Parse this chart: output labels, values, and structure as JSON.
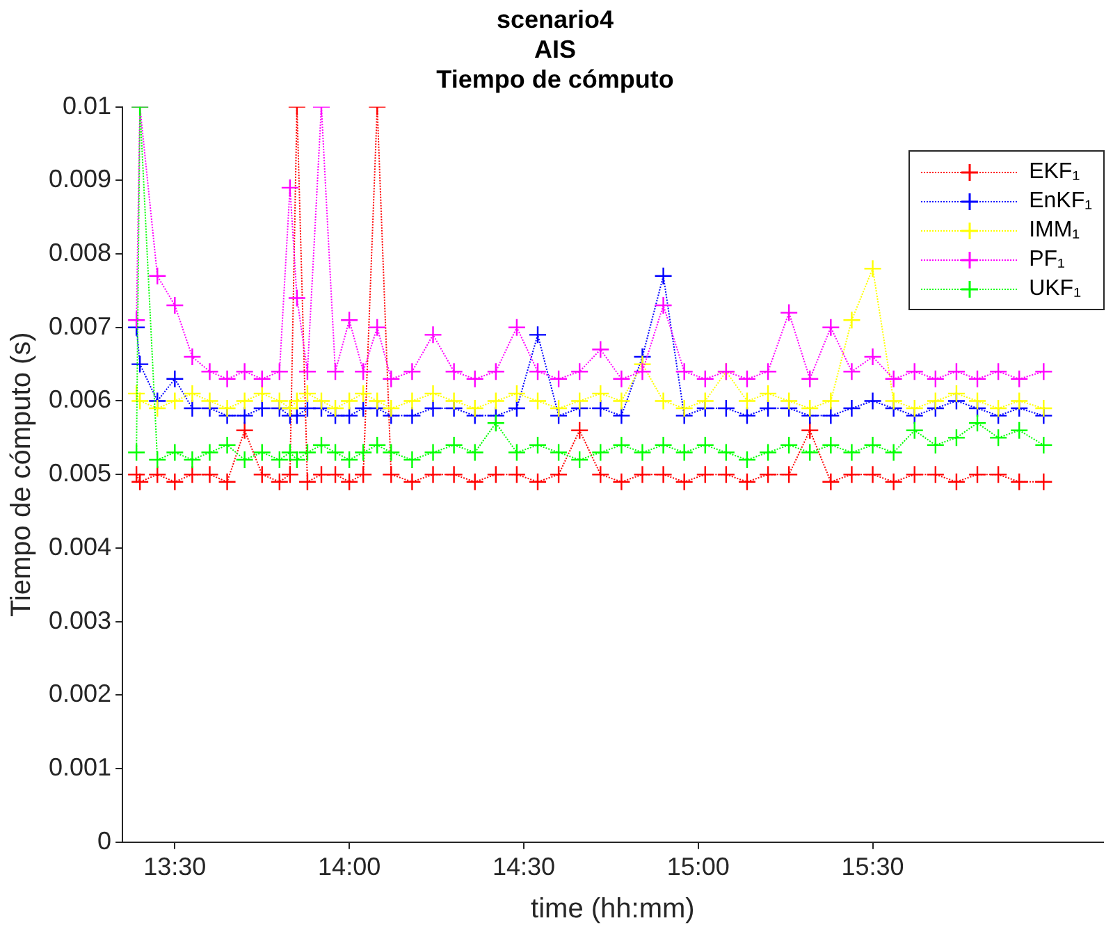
{
  "chart_data": {
    "type": "line",
    "title": "scenario4\nAIS\nTiempo de cómputo",
    "xlabel": "time (hh:mm)",
    "ylabel": "Tiempo de cómputo (s)",
    "x": [
      13.39,
      13.4,
      13.45,
      13.5,
      13.55,
      13.6,
      13.65,
      13.7,
      13.75,
      13.8,
      13.83,
      13.85,
      13.88,
      13.92,
      13.96,
      14.0,
      14.04,
      14.08,
      14.12,
      14.18,
      14.24,
      14.3,
      14.36,
      14.42,
      14.48,
      14.54,
      14.6,
      14.66,
      14.72,
      14.78,
      14.84,
      14.9,
      14.96,
      15.02,
      15.08,
      15.14,
      15.2,
      15.26,
      15.32,
      15.38,
      15.44,
      15.5,
      15.56,
      15.62,
      15.68,
      15.74,
      15.8,
      15.86,
      15.92,
      15.99
    ],
    "series": [
      {
        "name": "EKF₁",
        "color": "#ff0000",
        "values": [
          0.005,
          0.0049,
          0.005,
          0.0049,
          0.005,
          0.005,
          0.0049,
          0.0056,
          0.005,
          0.0049,
          0.005,
          0.01,
          0.0049,
          0.005,
          0.005,
          0.0049,
          0.005,
          0.01,
          0.005,
          0.0049,
          0.005,
          0.005,
          0.0049,
          0.005,
          0.005,
          0.0049,
          0.005,
          0.0056,
          0.005,
          0.0049,
          0.005,
          0.005,
          0.0049,
          0.005,
          0.005,
          0.0049,
          0.005,
          0.005,
          0.0056,
          0.0049,
          0.005,
          0.005,
          0.0049,
          0.005,
          0.005,
          0.0049,
          0.005,
          0.005,
          0.0049,
          0.0049
        ]
      },
      {
        "name": "EnKF₁",
        "color": "#0000ff",
        "values": [
          0.007,
          0.0065,
          0.006,
          0.0063,
          0.0059,
          0.0059,
          0.0058,
          0.0058,
          0.0059,
          0.0059,
          0.0058,
          0.0058,
          0.0059,
          0.0059,
          0.0058,
          0.0058,
          0.0059,
          0.0059,
          0.0058,
          0.0058,
          0.0059,
          0.0059,
          0.0058,
          0.0058,
          0.0059,
          0.0069,
          0.0058,
          0.0059,
          0.0059,
          0.0058,
          0.0066,
          0.0077,
          0.0058,
          0.0059,
          0.0059,
          0.0058,
          0.0059,
          0.0059,
          0.0058,
          0.0058,
          0.0059,
          0.006,
          0.0059,
          0.0058,
          0.0059,
          0.006,
          0.0059,
          0.0058,
          0.0059,
          0.0058
        ]
      },
      {
        "name": "IMM₁",
        "color": "#ffff00",
        "values": [
          0.0061,
          0.006,
          0.0059,
          0.006,
          0.0061,
          0.006,
          0.0059,
          0.006,
          0.0061,
          0.006,
          0.0059,
          0.006,
          0.0061,
          0.006,
          0.0059,
          0.006,
          0.0061,
          0.006,
          0.0059,
          0.006,
          0.0061,
          0.006,
          0.0059,
          0.006,
          0.0061,
          0.006,
          0.0059,
          0.006,
          0.0061,
          0.006,
          0.0065,
          0.006,
          0.0059,
          0.006,
          0.0064,
          0.006,
          0.0061,
          0.006,
          0.0059,
          0.006,
          0.0071,
          0.0078,
          0.006,
          0.0059,
          0.006,
          0.0061,
          0.006,
          0.0059,
          0.006,
          0.0059
        ]
      },
      {
        "name": "PF₁",
        "color": "#ff00ff",
        "values": [
          0.0071,
          0.01,
          0.0077,
          0.0073,
          0.0066,
          0.0064,
          0.0063,
          0.0064,
          0.0063,
          0.0064,
          0.0089,
          0.0074,
          0.0064,
          0.01,
          0.0064,
          0.0071,
          0.0064,
          0.007,
          0.0063,
          0.0064,
          0.0069,
          0.0064,
          0.0063,
          0.0064,
          0.007,
          0.0064,
          0.0063,
          0.0064,
          0.0067,
          0.0063,
          0.0064,
          0.0073,
          0.0064,
          0.0063,
          0.0064,
          0.0063,
          0.0064,
          0.0072,
          0.0063,
          0.007,
          0.0064,
          0.0066,
          0.0063,
          0.0064,
          0.0063,
          0.0064,
          0.0063,
          0.0064,
          0.0063,
          0.0064
        ]
      },
      {
        "name": "UKF₁",
        "color": "#00ff00",
        "values": [
          0.0053,
          0.01,
          0.0052,
          0.0053,
          0.0052,
          0.0053,
          0.0054,
          0.0052,
          0.0053,
          0.0052,
          0.0053,
          0.0052,
          0.0053,
          0.0054,
          0.0053,
          0.0052,
          0.0053,
          0.0054,
          0.0053,
          0.0052,
          0.0053,
          0.0054,
          0.0053,
          0.0057,
          0.0053,
          0.0054,
          0.0053,
          0.0052,
          0.0053,
          0.0054,
          0.0053,
          0.0054,
          0.0053,
          0.0054,
          0.0053,
          0.0052,
          0.0053,
          0.0054,
          0.0053,
          0.0054,
          0.0053,
          0.0054,
          0.0053,
          0.0056,
          0.0054,
          0.0055,
          0.0057,
          0.0055,
          0.0056,
          0.0054
        ]
      }
    ],
    "xlim": [
      13.35,
      16.16
    ],
    "xticks": [
      {
        "value": 13.5,
        "label": "13:30"
      },
      {
        "value": 14,
        "label": "14:00"
      },
      {
        "value": 14.5,
        "label": "14:30"
      },
      {
        "value": 15,
        "label": "15:00"
      },
      {
        "value": 15.5,
        "label": "15:30"
      }
    ],
    "ylim": [
      0,
      0.01
    ],
    "yticks": [
      0,
      0.001,
      0.002,
      0.003,
      0.004,
      0.005,
      0.006,
      0.007,
      0.008,
      0.009,
      0.01
    ],
    "grid": false,
    "legend": "top right",
    "marker": "cross",
    "line_style": "dotted"
  }
}
